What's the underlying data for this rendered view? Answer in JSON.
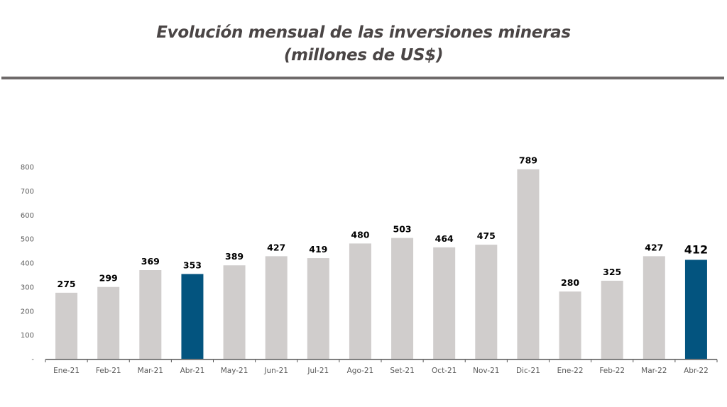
{
  "header": {
    "title_line1": "Evolución mensual de las inversiones mineras",
    "title_line2": "(millones de US$)"
  },
  "colors": {
    "bar_default": "#d0cdcc",
    "bar_highlight": "#03547f",
    "title_text": "#4a4545",
    "rule": "#6e6a6a",
    "axis": "#555555"
  },
  "chart_data": {
    "type": "bar",
    "title": "Evolución mensual de las inversiones mineras (millones de US$)",
    "xlabel": "",
    "ylabel": "",
    "categories": [
      "Ene-21",
      "Feb-21",
      "Mar-21",
      "Abr-21",
      "May-21",
      "Jun-21",
      "Jul-21",
      "Ago-21",
      "Set-21",
      "Oct-21",
      "Nov-21",
      "Dic-21",
      "Ene-22",
      "Feb-22",
      "Mar-22",
      "Abr-22"
    ],
    "values": [
      275,
      299,
      369,
      353,
      389,
      427,
      419,
      480,
      503,
      464,
      475,
      789,
      280,
      325,
      427,
      412
    ],
    "highlighted": [
      "Abr-21",
      "Abr-22"
    ],
    "data_labels": [
      "275",
      "299",
      "369",
      "353",
      "389",
      "427",
      "419",
      "480",
      "503",
      "464",
      "475",
      "789",
      "280",
      "325",
      "427",
      "412"
    ],
    "ylim": [
      0,
      800
    ],
    "yticks": [
      0,
      100,
      200,
      300,
      400,
      500,
      600,
      700,
      800
    ],
    "ytick_labels": [
      "-",
      "100",
      "200",
      "300",
      "400",
      "500",
      "600",
      "700",
      "800"
    ],
    "grid": false,
    "legend": "none"
  }
}
